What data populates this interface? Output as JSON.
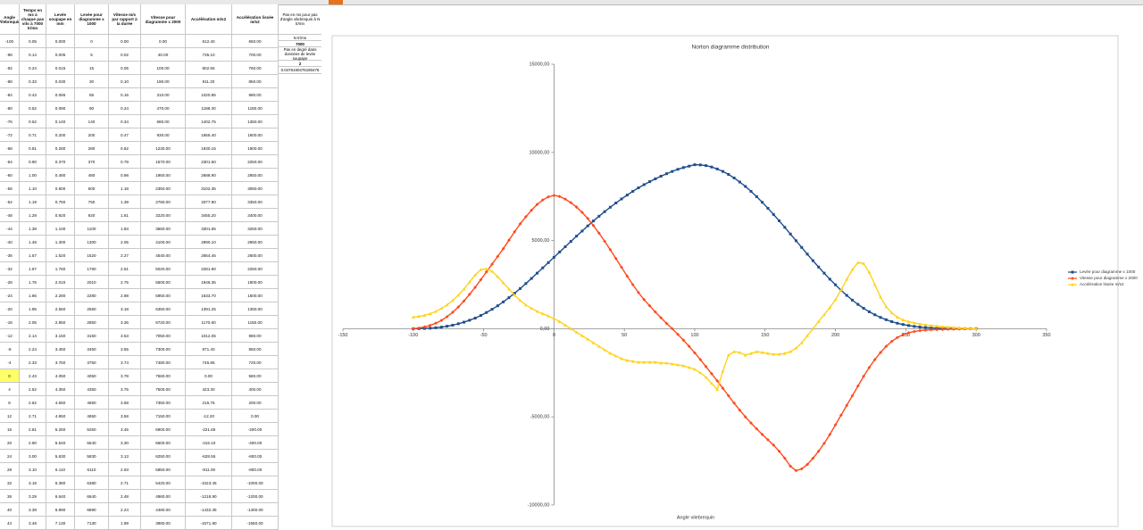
{
  "sheet": {
    "headers": [
      "Angle Vilebrequin",
      "Temps en ms à chaque pas vilo à 7000 tr/mn",
      "Levée soupape en mm",
      "Levée pour diagramme x 1000",
      "Vitesse m/s par rapport à la durée",
      "Vitesse pour diagramme x 2000",
      "Accélération m/s2",
      "Accélération lissée m/s2"
    ],
    "rows": [
      [
        "-100",
        "0.05",
        "0.000",
        "0",
        "0.00",
        "0.00",
        "612.40",
        "650.00"
      ],
      [
        "-96",
        "0.14",
        "0.005",
        "5",
        "0.02",
        "40.00",
        "735.10",
        "700.00"
      ],
      [
        "-92",
        "0.24",
        "0.015",
        "15",
        "0.05",
        "100.00",
        "802.55",
        "760.00"
      ],
      [
        "-88",
        "0.33",
        "0.030",
        "30",
        "0.10",
        "190.00",
        "911.20",
        "850.00"
      ],
      [
        "-84",
        "0.43",
        "0.055",
        "55",
        "0.16",
        "310.00",
        "1020.85",
        "980.00"
      ],
      [
        "-80",
        "0.52",
        "0.090",
        "90",
        "0.24",
        "470.00",
        "1188.30",
        "1150.00"
      ],
      [
        "-76",
        "0.62",
        "0.140",
        "140",
        "0.34",
        "680.00",
        "1402.75",
        "1350.00"
      ],
      [
        "-72",
        "0.71",
        "0.200",
        "200",
        "0.47",
        "930.00",
        "1655.40",
        "1600.00"
      ],
      [
        "-68",
        "0.81",
        "0.280",
        "280",
        "0.62",
        "1230.00",
        "1930.15",
        "1900.00"
      ],
      [
        "-64",
        "0.90",
        "0.370",
        "370",
        "0.79",
        "1570.00",
        "2301.60",
        "2250.00"
      ],
      [
        "-60",
        "1.00",
        "0.480",
        "480",
        "0.98",
        "1950.00",
        "2688.90",
        "2650.00"
      ],
      [
        "-56",
        "1.10",
        "0.600",
        "600",
        "1.18",
        "2350.00",
        "3102.35",
        "3050.00"
      ],
      [
        "-52",
        "1.19",
        "0.750",
        "750",
        "1.39",
        "2780.00",
        "3377.80",
        "3350.00"
      ],
      [
        "-48",
        "1.29",
        "0.920",
        "920",
        "1.61",
        "3220.00",
        "3455.20",
        "3400.00"
      ],
      [
        "-44",
        "1.38",
        "1.100",
        "1100",
        "1.83",
        "3660.00",
        "3301.65",
        "3250.00"
      ],
      [
        "-40",
        "1.48",
        "1.300",
        "1300",
        "2.05",
        "4100.00",
        "2990.10",
        "2950.00"
      ],
      [
        "-36",
        "1.57",
        "1.520",
        "1520",
        "2.27",
        "4540.00",
        "2654.45",
        "2600.00"
      ],
      [
        "-32",
        "1.67",
        "1.760",
        "1760",
        "2.51",
        "5020.00",
        "2281.90",
        "2250.00"
      ],
      [
        "-28",
        "1.76",
        "2.010",
        "2010",
        "2.75",
        "5500.00",
        "1946.35",
        "1900.00"
      ],
      [
        "-24",
        "1.86",
        "2.280",
        "2280",
        "2.98",
        "5950.00",
        "1633.70",
        "1600.00"
      ],
      [
        "-20",
        "1.95",
        "2.560",
        "2560",
        "3.18",
        "6350.00",
        "1391.25",
        "1350.00"
      ],
      [
        "-16",
        "2.05",
        "2.850",
        "2850",
        "3.36",
        "6720.00",
        "1170.60",
        "1150.00"
      ],
      [
        "-12",
        "2.14",
        "3.150",
        "3150",
        "3.53",
        "7050.00",
        "1012.05",
        "980.00"
      ],
      [
        "-8",
        "2.24",
        "3.450",
        "3450",
        "3.65",
        "7300.00",
        "871.40",
        "850.00"
      ],
      [
        "-4",
        "2.33",
        "3.750",
        "3750",
        "3.74",
        "7480.00",
        "745.85",
        "720.00"
      ],
      [
        "0",
        "2.43",
        "4.050",
        "4050",
        "3.78",
        "7560.00",
        "0.00",
        "580.00"
      ],
      [
        "4",
        "2.52",
        "4.350",
        "4350",
        "3.75",
        "7500.00",
        "423.30",
        "400.00"
      ],
      [
        "8",
        "2.62",
        "4.650",
        "4650",
        "3.68",
        "7350.00",
        "215.75",
        "200.00"
      ],
      [
        "12",
        "2.71",
        "4.950",
        "4950",
        "3.58",
        "7150.00",
        "-12.20",
        "0.00"
      ],
      [
        "16",
        "2.81",
        "5.250",
        "5250",
        "3.45",
        "6900.00",
        "-221.65",
        "-200.00"
      ],
      [
        "20",
        "2.90",
        "5.540",
        "5540",
        "3.30",
        "6600.00",
        "-415.10",
        "-400.00"
      ],
      [
        "24",
        "3.00",
        "5.830",
        "5830",
        "3.13",
        "6250.00",
        "-628.55",
        "-600.00"
      ],
      [
        "28",
        "3.10",
        "6.110",
        "6110",
        "2.93",
        "5850.00",
        "-811.00",
        "-800.00"
      ],
      [
        "32",
        "3.19",
        "6.380",
        "6380",
        "2.71",
        "5420.00",
        "-1023.45",
        "-1000.00"
      ],
      [
        "36",
        "3.29",
        "6.640",
        "6640",
        "2.48",
        "4960.00",
        "-1218.90",
        "-1200.00"
      ],
      [
        "40",
        "3.38",
        "6.890",
        "6890",
        "2.24",
        "4480.00",
        "-1432.35",
        "-1400.00"
      ],
      [
        "44",
        "3.48",
        "7.130",
        "7130",
        "1.99",
        "3980.00",
        "-1571.80",
        "-1550.00"
      ]
    ],
    "side": [
      "Pas en ms pour pas d'angle vilebrequin à N tr/mn",
      "N tr/mn",
      "7000",
      "Pas en degré dans données de levée soupape",
      "2",
      "0.0476190476190476"
    ]
  },
  "chart_data": {
    "type": "line",
    "title": "Norton diagramme distribution",
    "x_label": "Angle vilebrequin",
    "xlim": [
      -150,
      350
    ],
    "xticks": [
      -150,
      -100,
      -50,
      0,
      50,
      100,
      150,
      200,
      250,
      300,
      350
    ],
    "ylim": [
      -10000,
      15000
    ],
    "yticks": [
      {
        "value": -10000,
        "label": "-10000,00"
      },
      {
        "value": -5000,
        "label": "-5000,00"
      },
      {
        "value": 0,
        "label": "0,00"
      },
      {
        "value": 5000,
        "label": "5000,00"
      },
      {
        "value": 10000,
        "label": "10000,00"
      },
      {
        "value": 15000,
        "label": "15000,00"
      }
    ],
    "grid": false,
    "legend": "right",
    "x": [
      -100,
      -96,
      -92,
      -88,
      -84,
      -80,
      -76,
      -72,
      -68,
      -64,
      -60,
      -56,
      -52,
      -48,
      -44,
      -40,
      -36,
      -32,
      -28,
      -24,
      -20,
      -16,
      -12,
      -8,
      -4,
      0,
      4,
      8,
      12,
      16,
      20,
      24,
      28,
      32,
      36,
      40,
      44,
      48,
      52,
      56,
      60,
      64,
      68,
      72,
      76,
      80,
      84,
      88,
      92,
      96,
      100,
      104,
      108,
      112,
      116,
      120,
      124,
      128,
      132,
      136,
      140,
      144,
      148,
      152,
      156,
      160,
      164,
      168,
      172,
      176,
      180,
      184,
      188,
      192,
      196,
      200,
      204,
      208,
      212,
      216,
      220,
      224,
      228,
      232,
      236,
      240,
      244,
      248,
      252,
      256,
      260,
      264,
      268,
      272,
      276,
      280,
      284,
      288,
      292,
      296,
      300
    ],
    "series": [
      {
        "name": "Levée pour diagramme x 1000",
        "color": "#1f4e8c",
        "marker": "square",
        "values": [
          0,
          5,
          15,
          30,
          55,
          90,
          140,
          200,
          280,
          370,
          480,
          600,
          750,
          920,
          1100,
          1300,
          1520,
          1760,
          2010,
          2280,
          2560,
          2850,
          3150,
          3450,
          3750,
          4050,
          4350,
          4650,
          4950,
          5250,
          5540,
          5830,
          6110,
          6380,
          6640,
          6890,
          7130,
          7360,
          7580,
          7790,
          7990,
          8170,
          8340,
          8500,
          8650,
          8790,
          8920,
          9040,
          9140,
          9220,
          9300,
          9290,
          9250,
          9170,
          9060,
          8920,
          8750,
          8550,
          8320,
          8070,
          7790,
          7490,
          7170,
          6830,
          6480,
          6120,
          5750,
          5370,
          4990,
          4610,
          4230,
          3860,
          3500,
          3150,
          2810,
          2490,
          2180,
          1890,
          1620,
          1380,
          1160,
          960,
          790,
          640,
          510,
          400,
          310,
          240,
          180,
          130,
          95,
          65,
          45,
          30,
          20,
          12,
          7,
          4,
          2,
          1,
          0
        ]
      },
      {
        "name": "Vitesse pour diagramme x 2000",
        "color": "#ff4a1c",
        "marker": "diamond",
        "values": [
          0,
          40,
          100,
          190,
          310,
          470,
          680,
          930,
          1230,
          1570,
          1950,
          2350,
          2780,
          3220,
          3660,
          4100,
          4540,
          5020,
          5500,
          5950,
          6350,
          6720,
          7050,
          7300,
          7480,
          7560,
          7500,
          7350,
          7150,
          6900,
          6600,
          6250,
          5850,
          5420,
          4960,
          4480,
          3980,
          3480,
          2980,
          2500,
          2050,
          1650,
          1300,
          950,
          620,
          300,
          0,
          -320,
          -650,
          -1000,
          -1370,
          -1750,
          -2150,
          -2550,
          -2960,
          -3380,
          -3800,
          -4220,
          -4620,
          -5000,
          -5350,
          -5680,
          -6000,
          -6300,
          -6600,
          -6950,
          -7350,
          -7800,
          -8050,
          -7950,
          -7700,
          -7350,
          -6950,
          -6500,
          -6000,
          -5450,
          -4900,
          -4350,
          -3800,
          -3250,
          -2700,
          -2200,
          -1750,
          -1350,
          -1000,
          -720,
          -500,
          -340,
          -230,
          -160,
          -110,
          -80,
          -60,
          -50,
          -40,
          -30,
          -20,
          -12,
          -6,
          -2,
          0
        ]
      },
      {
        "name": "Accélération lissée m/s2",
        "color": "#ffd21a",
        "marker": "triangle",
        "values": [
          650,
          700,
          760,
          850,
          980,
          1150,
          1350,
          1600,
          1900,
          2250,
          2650,
          3050,
          3350,
          3400,
          3250,
          2950,
          2600,
          2250,
          1900,
          1600,
          1350,
          1150,
          980,
          850,
          720,
          580,
          400,
          200,
          0,
          -200,
          -400,
          -600,
          -800,
          -1000,
          -1200,
          -1400,
          -1550,
          -1700,
          -1800,
          -1850,
          -1900,
          -1900,
          -1900,
          -1900,
          -1950,
          -1950,
          -2000,
          -2050,
          -2100,
          -2200,
          -2300,
          -2500,
          -2750,
          -3100,
          -3450,
          -2400,
          -1500,
          -1300,
          -1350,
          -1500,
          -1400,
          -1300,
          -1350,
          -1400,
          -1450,
          -1450,
          -1400,
          -1300,
          -1100,
          -800,
          -400,
          0,
          400,
          800,
          1200,
          1650,
          2200,
          2800,
          3350,
          3750,
          3700,
          3200,
          2500,
          1800,
          1250,
          900,
          650,
          500,
          400,
          330,
          270,
          220,
          180,
          150,
          120,
          90,
          70,
          50,
          30,
          15,
          0
        ]
      }
    ]
  }
}
